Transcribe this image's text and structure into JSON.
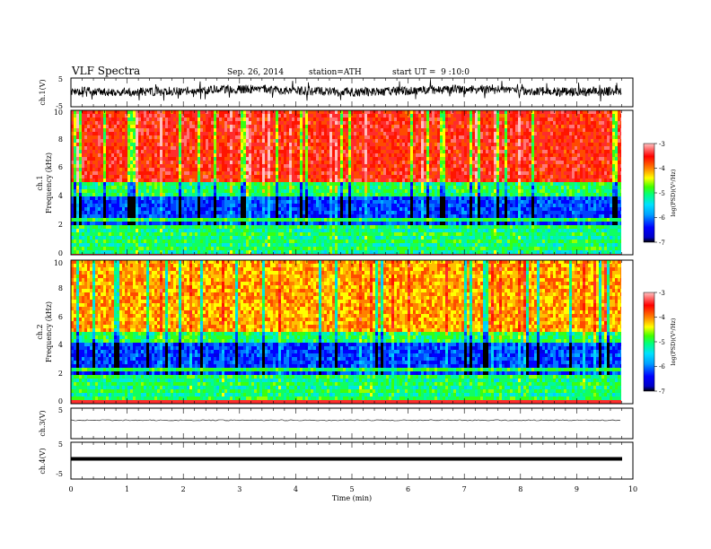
{
  "header": {
    "title": "VLF Spectra",
    "date": "Sep. 26, 2014",
    "station": "station=ATH",
    "start": "start UT =  9 :10:0"
  },
  "chart_data": [
    {
      "type": "line",
      "panel": "ch1-waveform",
      "ylabel": "ch.1(V)",
      "ylim": [
        -5,
        5
      ],
      "y_ticks": [
        "5",
        "-5"
      ],
      "xlim": [
        0,
        10
      ],
      "series_color": "#000000"
    },
    {
      "type": "heatmap",
      "panel": "ch1-spectrogram",
      "ylabel": "Frequency (kHz)",
      "channel_label": "ch.1",
      "ylim": [
        0,
        10
      ],
      "y_ticks": [
        "0",
        "2",
        "4",
        "6",
        "8",
        "10"
      ],
      "xlim": [
        0,
        9.8
      ],
      "colorbar": {
        "label": "log(PSD)(V²/Hz)",
        "ticks": [
          "-3",
          "-4",
          "-5",
          "-6",
          "-7"
        ],
        "range": [
          -7,
          -3
        ],
        "colors": [
          "#000000",
          "#0000c8",
          "#0000ff",
          "#00a0ff",
          "#00e0ff",
          "#00ff80",
          "#40ff00",
          "#ffff00",
          "#ff8000",
          "#ff0000",
          "#ffc0c0"
        ]
      }
    },
    {
      "type": "heatmap",
      "panel": "ch2-spectrogram",
      "ylabel": "Frequency (kHz)",
      "channel_label": "ch.2",
      "ylim": [
        0,
        10
      ],
      "y_ticks": [
        "0",
        "2",
        "4",
        "6",
        "8",
        "10"
      ],
      "xlim": [
        0,
        9.8
      ],
      "colorbar": {
        "label": "log(PSD)(V²/Hz)",
        "ticks": [
          "-3",
          "-4",
          "-5",
          "-6",
          "-7"
        ],
        "range": [
          -7,
          -3
        ]
      }
    },
    {
      "type": "line",
      "panel": "ch3-waveform",
      "ylabel": "ch.3(V)",
      "ylim": [
        -5,
        5
      ],
      "y_ticks": [
        "5"
      ],
      "xlim": [
        0,
        10
      ]
    },
    {
      "type": "line",
      "panel": "ch4-waveform",
      "ylabel": "ch.4(V)",
      "ylim": [
        -5,
        5
      ],
      "y_ticks": [
        "5",
        "-5"
      ],
      "xlim": [
        0,
        10
      ],
      "x_ticks": [
        "0",
        "1",
        "2",
        "3",
        "4",
        "5",
        "6",
        "7",
        "8",
        "9",
        "10"
      ],
      "xlabel": "Time (min)"
    }
  ]
}
